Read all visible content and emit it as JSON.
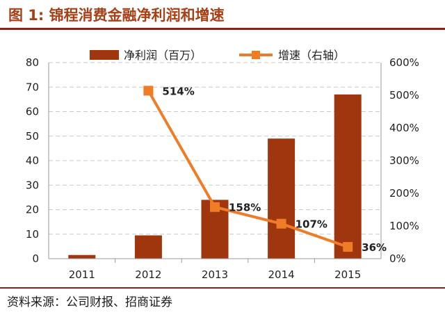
{
  "header": {
    "title": "图 1:  锦程消费金融净利润和增速"
  },
  "footer": {
    "source": "资料来源：公司财报、招商证券"
  },
  "chart_data": {
    "type": "bar",
    "title": "锦程消费金融净利润和增速",
    "categories": [
      "2011",
      "2012",
      "2013",
      "2014",
      "2015"
    ],
    "series": [
      {
        "name": "净利润（百万）",
        "axis": "left",
        "type": "bar",
        "color": "#a0360e",
        "values": [
          1.5,
          9.5,
          24,
          49,
          67
        ]
      },
      {
        "name": "增速（右轴）",
        "axis": "right",
        "type": "line",
        "color": "#ef7d28",
        "values": [
          null,
          514,
          158,
          107,
          36
        ],
        "labels": [
          "",
          "514%",
          "158%",
          "107%",
          "36%"
        ]
      }
    ],
    "ylim_left": [
      0,
      80
    ],
    "yticks_left": [
      "0",
      "10",
      "20",
      "30",
      "40",
      "50",
      "60",
      "70",
      "80"
    ],
    "ylim_right": [
      0,
      600
    ],
    "yticks_right": [
      "0%",
      "100%",
      "200%",
      "300%",
      "400%",
      "500%",
      "600%"
    ],
    "grid": true,
    "legend_position": "top"
  }
}
